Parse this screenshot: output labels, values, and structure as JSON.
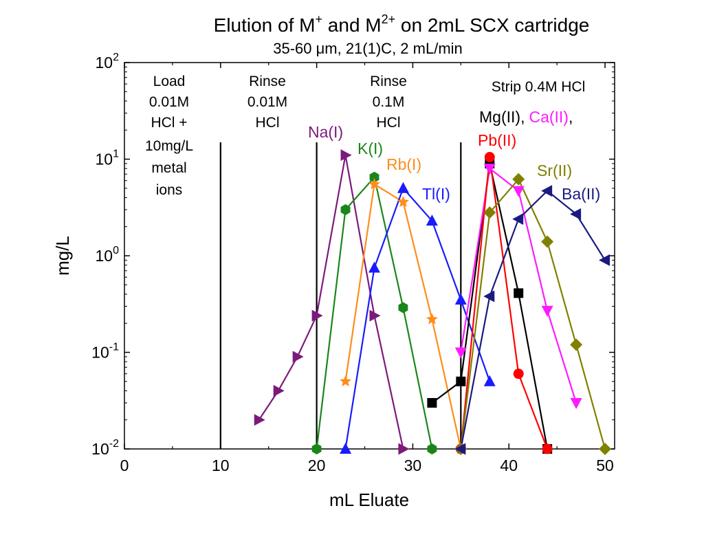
{
  "chart_data": {
    "type": "line",
    "title_main": "Elution of M",
    "title_sup1": "+",
    "title_mid": " and M",
    "title_sup2": "2+",
    "title_tail": " on 2mL SCX cartridge",
    "subtitle": "35-60 μm, 21(1)C, 2 mL/min",
    "xlabel": "mL Eluate",
    "ylabel": "mg/L",
    "xlim": [
      0,
      51
    ],
    "ylim": [
      0.01,
      100
    ],
    "yscale": "log",
    "x_ticks": [
      0,
      10,
      20,
      30,
      40,
      50
    ],
    "x_tick_labels": [
      "0",
      "10",
      "20",
      "30",
      "40",
      "50"
    ],
    "y_ticks": [
      0.01,
      0.1,
      1,
      10,
      100
    ],
    "y_tick_base": "10",
    "y_tick_exps": [
      "-2",
      "-1",
      "0",
      "1",
      "2"
    ],
    "vlines": [
      10,
      20,
      35
    ],
    "phases": [
      {
        "lines": [
          "Load",
          "0.01M",
          "HCl +",
          "10mg/L",
          "metal",
          "ions"
        ]
      },
      {
        "lines": [
          "Rinse",
          "0.01M",
          "HCl"
        ]
      },
      {
        "lines": [
          "Rinse",
          "0.1M",
          "HCl"
        ]
      },
      {
        "lines": [
          "Strip 0.4M HCl"
        ]
      }
    ],
    "strip_labels": {
      "mg": "Mg(II)",
      "comma1": ",",
      "ca": "Ca(II)",
      "comma2": ",",
      "pb": "Pb(II)"
    },
    "series": [
      {
        "name": "Na(I)",
        "color": "#7b1a7b",
        "marker": "triangle-right",
        "x": [
          14,
          16,
          18,
          20,
          23,
          26,
          29
        ],
        "y": [
          0.02,
          0.04,
          0.09,
          0.24,
          11,
          0.24,
          0.01
        ]
      },
      {
        "name": "K(I)",
        "color": "#1a861a",
        "marker": "hexagon",
        "x": [
          20,
          23,
          26,
          29,
          32
        ],
        "y": [
          0.01,
          3,
          6.5,
          0.29,
          0.01
        ]
      },
      {
        "name": "Rb(I)",
        "color": "#ff8c1a",
        "marker": "star",
        "x": [
          23,
          26,
          29,
          32,
          35
        ],
        "y": [
          0.05,
          5.5,
          3.6,
          0.22,
          0.01
        ]
      },
      {
        "name": "Tl(I)",
        "color": "#1a1aff",
        "marker": "triangle-up",
        "x": [
          23,
          26,
          29,
          32,
          35,
          38
        ],
        "y": [
          0.01,
          0.75,
          5,
          2.3,
          0.35,
          0.05
        ]
      },
      {
        "name": "Mg(II)",
        "color": "#000000",
        "marker": "square",
        "x": [
          32,
          35,
          38,
          41,
          44
        ],
        "y": [
          0.03,
          0.05,
          9,
          0.41,
          0.01
        ]
      },
      {
        "name": "Ca(II)",
        "color": "#ff1aff",
        "marker": "triangle-down",
        "x": [
          35,
          38,
          41,
          44,
          47
        ],
        "y": [
          0.1,
          8,
          4.7,
          0.27,
          0.03
        ]
      },
      {
        "name": "Pb(II)",
        "color": "#ff0000",
        "marker": "circle",
        "x": [
          35,
          38,
          41,
          44
        ],
        "y": [
          0.01,
          10.5,
          0.06,
          0.01
        ]
      },
      {
        "name": "Sr(II)",
        "color": "#808000",
        "marker": "diamond",
        "x": [
          35,
          38,
          41,
          44,
          47,
          50
        ],
        "y": [
          0.01,
          2.8,
          6.2,
          1.4,
          0.12,
          0.01
        ]
      },
      {
        "name": "Ba(II)",
        "color": "#1a1a80",
        "marker": "triangle-left",
        "x": [
          35,
          38,
          41,
          44,
          47,
          50
        ],
        "y": [
          0.01,
          0.38,
          2.4,
          4.7,
          2.7,
          0.9
        ]
      }
    ]
  }
}
